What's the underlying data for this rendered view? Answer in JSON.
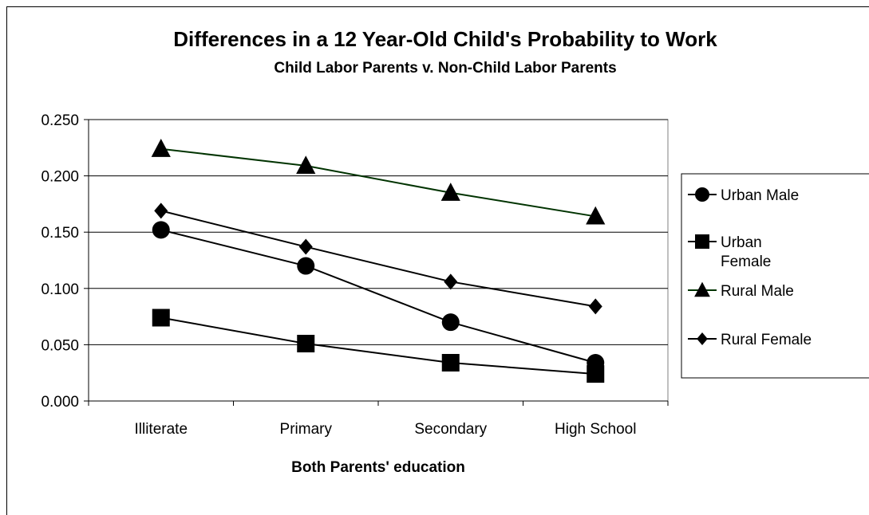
{
  "chart_data": {
    "type": "line",
    "title": "Differences in a 12 Year-Old Child's Probability to Work",
    "subtitle": "Child Labor Parents v. Non-Child Labor Parents",
    "xlabel": "Both Parents' education",
    "ylabel": "",
    "categories": [
      "Illiterate",
      "Primary",
      "Secondary",
      "High School"
    ],
    "ylim": [
      0,
      0.25
    ],
    "yticks": [
      "0.000",
      "0.050",
      "0.100",
      "0.150",
      "0.200",
      "0.250"
    ],
    "grid": true,
    "legend_position": "right",
    "series": [
      {
        "name": "Urban Male",
        "values": [
          0.152,
          0.12,
          0.07,
          0.034
        ],
        "marker": "circle",
        "color": "#000000"
      },
      {
        "name": "Urban Female",
        "values": [
          0.074,
          0.051,
          0.034,
          0.024
        ],
        "marker": "square",
        "color": "#000000"
      },
      {
        "name": "Rural Male",
        "values": [
          0.224,
          0.209,
          0.185,
          0.164
        ],
        "marker": "triangle",
        "color": "#003300"
      },
      {
        "name": "Rural Female",
        "values": [
          0.169,
          0.137,
          0.106,
          0.084
        ],
        "marker": "diamond",
        "color": "#000000"
      }
    ],
    "legend_labels": [
      [
        "Urban Male"
      ],
      [
        "Urban",
        "Female"
      ],
      [
        "Rural Male"
      ],
      [
        "Rural Female"
      ]
    ]
  }
}
